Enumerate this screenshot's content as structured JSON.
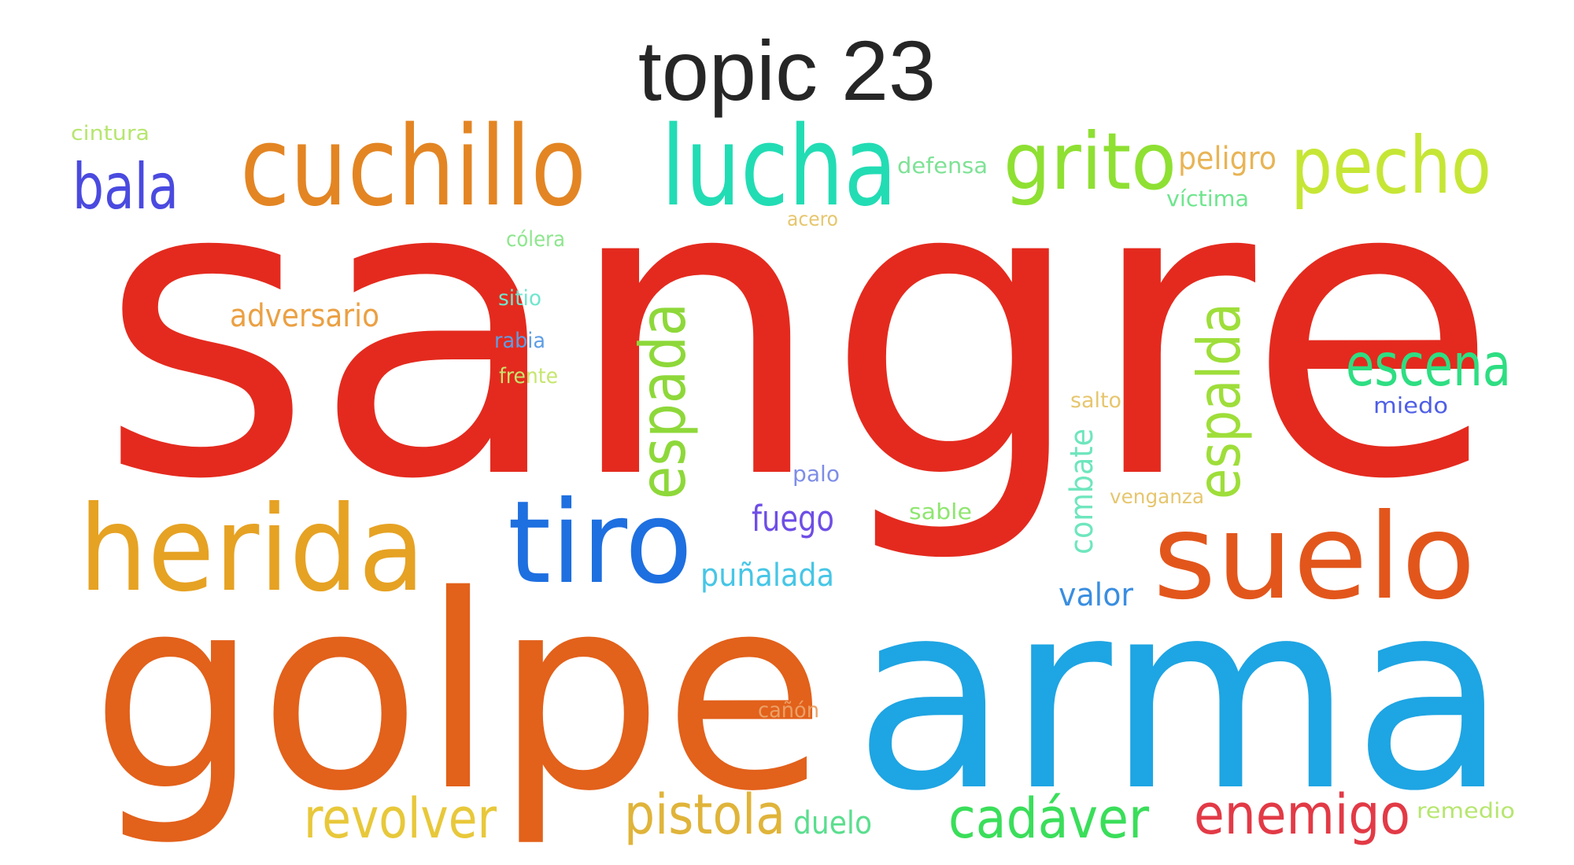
{
  "title": "topic 23",
  "words": [
    {
      "text": "sangre",
      "color": "#e42a1e",
      "vertical": false
    },
    {
      "text": "golpe",
      "color": "#e2611b",
      "vertical": false
    },
    {
      "text": "arma",
      "color": "#1ea5e3",
      "vertical": false
    },
    {
      "text": "herida",
      "color": "#e6a223",
      "vertical": false
    },
    {
      "text": "suelo",
      "color": "#e2561c",
      "vertical": false
    },
    {
      "text": "tiro",
      "color": "#1e6fe0",
      "vertical": false
    },
    {
      "text": "cuchillo",
      "color": "#e38523",
      "vertical": false
    },
    {
      "text": "lucha",
      "color": "#22dcb4",
      "vertical": false
    },
    {
      "text": "grito",
      "color": "#8ee032",
      "vertical": false
    },
    {
      "text": "pecho",
      "color": "#c6e636",
      "vertical": false
    },
    {
      "text": "bala",
      "color": "#4a4ae0",
      "vertical": false
    },
    {
      "text": "espada",
      "color": "#8ed83a",
      "vertical": true
    },
    {
      "text": "espalda",
      "color": "#9ede3a",
      "vertical": true
    },
    {
      "text": "escena",
      "color": "#2ede82",
      "vertical": false
    },
    {
      "text": "revolver",
      "color": "#e8c83a",
      "vertical": false
    },
    {
      "text": "pistola",
      "color": "#e0b43a",
      "vertical": false
    },
    {
      "text": "cadáver",
      "color": "#3ade5a",
      "vertical": false
    },
    {
      "text": "enemigo",
      "color": "#e23a46",
      "vertical": false
    },
    {
      "text": "adversario",
      "color": "#eba042",
      "vertical": false
    },
    {
      "text": "combate",
      "color": "#6ee6be",
      "vertical": true
    },
    {
      "text": "fuego",
      "color": "#6e4ee6",
      "vertical": false
    },
    {
      "text": "puñalada",
      "color": "#46c6e6",
      "vertical": false
    },
    {
      "text": "valor",
      "color": "#3a8ee0",
      "vertical": false
    },
    {
      "text": "peligro",
      "color": "#e8b456",
      "vertical": false
    },
    {
      "text": "duelo",
      "color": "#5ade8e",
      "vertical": false
    },
    {
      "text": "defensa",
      "color": "#7ee296",
      "vertical": false
    },
    {
      "text": "víctima",
      "color": "#6ee68e",
      "vertical": false
    },
    {
      "text": "cintura",
      "color": "#b6e66e",
      "vertical": false
    },
    {
      "text": "acero",
      "color": "#e6c66e",
      "vertical": false
    },
    {
      "text": "cólera",
      "color": "#8ee68e",
      "vertical": false
    },
    {
      "text": "sitio",
      "color": "#6ee6ce",
      "vertical": false
    },
    {
      "text": "rabia",
      "color": "#5e9ee6",
      "vertical": false
    },
    {
      "text": "frente",
      "color": "#c6e66e",
      "vertical": false
    },
    {
      "text": "salto",
      "color": "#e6c66e",
      "vertical": false
    },
    {
      "text": "miedo",
      "color": "#4e5ee6",
      "vertical": false
    },
    {
      "text": "palo",
      "color": "#7e8ee6",
      "vertical": false
    },
    {
      "text": "sable",
      "color": "#8ee66e",
      "vertical": false
    },
    {
      "text": "venganza",
      "color": "#e6c66e",
      "vertical": false
    },
    {
      "text": "cañón",
      "color": "#eba066",
      "vertical": false
    },
    {
      "text": "remedio",
      "color": "#b6e66e",
      "vertical": false
    }
  ]
}
